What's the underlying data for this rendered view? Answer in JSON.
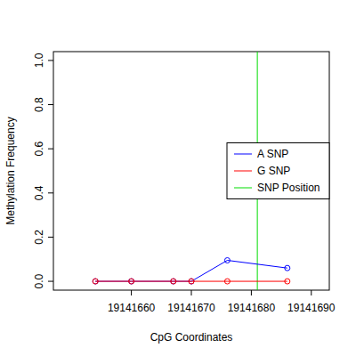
{
  "chart_data": {
    "type": "line",
    "x_label": "CpG Coordinates",
    "y_label": "Methylation Frequency",
    "x": [
      19141654,
      19141660,
      19141667,
      19141670,
      19141676,
      19141686
    ],
    "series": [
      {
        "name": "A SNP",
        "color": "#0000ff",
        "marker": "circle",
        "values": [
          0,
          0,
          0,
          0,
          0.095,
          0.06
        ]
      },
      {
        "name": "G SNP",
        "color": "#ff0000",
        "marker": "circle",
        "values": [
          0,
          0,
          0,
          0,
          0,
          0
        ]
      }
    ],
    "snp_position": {
      "name": "SNP Position",
      "color": "#00dd00",
      "value": 19141681
    },
    "xlim": [
      19141647,
      19141693
    ],
    "xticks": [
      19141660,
      19141670,
      19141680,
      19141690
    ],
    "ylim": [
      -0.04,
      1.04
    ],
    "yticks": [
      {
        "value": 0,
        "label": "0.0"
      },
      0.2,
      0.4,
      0.6,
      0.8,
      {
        "value": 1,
        "label": "1.0"
      }
    ],
    "legend": "right",
    "grid": false
  }
}
